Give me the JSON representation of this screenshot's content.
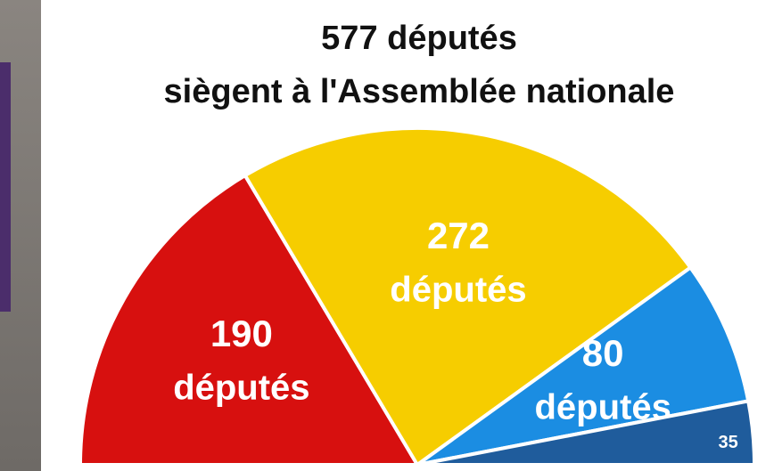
{
  "chart_data": {
    "type": "pie",
    "half_circle": true,
    "title": [
      "577 députés",
      "siègent à l'Assemblée nationale"
    ],
    "values": [
      190,
      272,
      80,
      35
    ],
    "units": [
      "députés",
      "députés",
      "députés",
      null
    ],
    "colors": [
      "#d7100f",
      "#f6cd00",
      "#1b8de2",
      "#1f5c9c"
    ]
  }
}
